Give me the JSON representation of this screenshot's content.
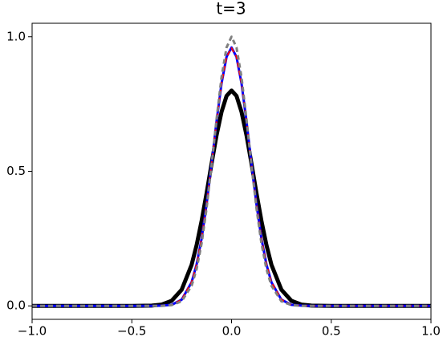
{
  "chart_data": {
    "type": "line",
    "title": "t=3",
    "x": [
      -1,
      -0.5,
      -0.4,
      -0.35,
      -0.3,
      -0.25,
      -0.2,
      -0.175,
      -0.15,
      -0.125,
      -0.1,
      -0.075,
      -0.05,
      -0.025,
      0,
      0.025,
      0.05,
      0.075,
      0.1,
      0.125,
      0.15,
      0.175,
      0.2,
      0.25,
      0.3,
      0.35,
      0.4,
      0.5,
      1
    ],
    "series": [
      {
        "color": "#000000",
        "dashed": false,
        "values": [
          0,
          0,
          0.001,
          0.005,
          0.019,
          0.06,
          0.153,
          0.226,
          0.316,
          0.419,
          0.529,
          0.634,
          0.721,
          0.78,
          0.8,
          0.78,
          0.721,
          0.634,
          0.529,
          0.419,
          0.316,
          0.226,
          0.153,
          0.06,
          0.019,
          0.005,
          0.001,
          0,
          0
        ]
      },
      {
        "color": "#0000ff",
        "dashed": false,
        "values": [
          0,
          0,
          0,
          0.001,
          0.004,
          0.023,
          0.088,
          0.154,
          0.25,
          0.378,
          0.528,
          0.686,
          0.827,
          0.925,
          0.96,
          0.925,
          0.827,
          0.686,
          0.528,
          0.378,
          0.25,
          0.154,
          0.088,
          0.023,
          0.004,
          0.001,
          0,
          0,
          0
        ]
      },
      {
        "color": "#ff0000",
        "dashed": true,
        "values": [
          0,
          0,
          0,
          0.001,
          0.004,
          0.023,
          0.088,
          0.154,
          0.25,
          0.378,
          0.528,
          0.686,
          0.827,
          0.925,
          0.958,
          0.925,
          0.827,
          0.686,
          0.528,
          0.378,
          0.25,
          0.154,
          0.088,
          0.023,
          0.004,
          0.001,
          0,
          0,
          0
        ]
      },
      {
        "color": "#808080",
        "dashed": true,
        "values": [
          0,
          0,
          0,
          0,
          0.003,
          0.017,
          0.075,
          0.137,
          0.232,
          0.363,
          0.523,
          0.694,
          0.85,
          0.96,
          1.0,
          0.96,
          0.85,
          0.694,
          0.523,
          0.363,
          0.232,
          0.137,
          0.075,
          0.017,
          0.003,
          0,
          0,
          0,
          0
        ]
      }
    ],
    "xlim": [
      -1,
      1
    ],
    "xticks": [
      {
        "value": -1,
        "label": "−1.0"
      },
      {
        "value": -0.5,
        "label": "−0.5"
      },
      {
        "value": 0,
        "label": "0.0"
      },
      {
        "value": 0.5,
        "label": "0.5"
      },
      {
        "value": 1,
        "label": "1.0"
      }
    ],
    "ylim": [
      -0.05,
      1.05
    ],
    "yticks": [
      {
        "value": 0,
        "label": "0.0"
      },
      {
        "value": 0.5,
        "label": "0.5"
      },
      {
        "value": 1,
        "label": "1.0"
      }
    ],
    "grid": false
  }
}
